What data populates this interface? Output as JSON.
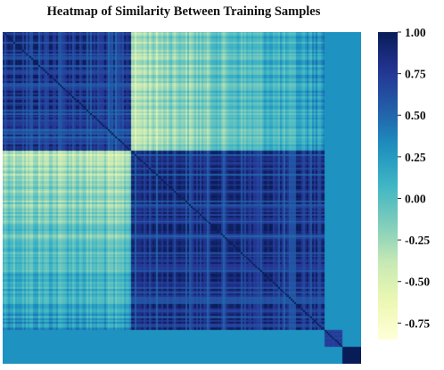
{
  "chart_data": {
    "type": "heatmap",
    "title": "Heatmap of Similarity Between Training Samples",
    "xlabel": "",
    "ylabel": "",
    "colormap": "YlGnBu",
    "vmin": -0.85,
    "vmax": 1.0,
    "n_samples": 200,
    "clusters": [
      {
        "size": 72,
        "within_similarity": 0.78
      },
      {
        "size": 108,
        "within_similarity": 0.82
      },
      {
        "size": 10,
        "within_similarity": 0.7
      },
      {
        "size": 10,
        "within_similarity": 1.0
      }
    ],
    "between_cluster_similarity": [
      [
        0.78,
        -0.15,
        0.3,
        0.3
      ],
      [
        -0.15,
        0.82,
        0.3,
        0.3
      ],
      [
        0.3,
        0.3,
        0.7,
        0.3
      ],
      [
        0.3,
        0.3,
        0.3,
        1.0
      ]
    ],
    "colorbar": {
      "ticks": [
        1.0,
        0.75,
        0.5,
        0.25,
        0.0,
        -0.25,
        -0.5,
        -0.75
      ],
      "tick_labels": [
        "1.00",
        "0.75",
        "0.50",
        "0.25",
        "0.00",
        "-0.25",
        "-0.50",
        "-0.75"
      ]
    }
  }
}
